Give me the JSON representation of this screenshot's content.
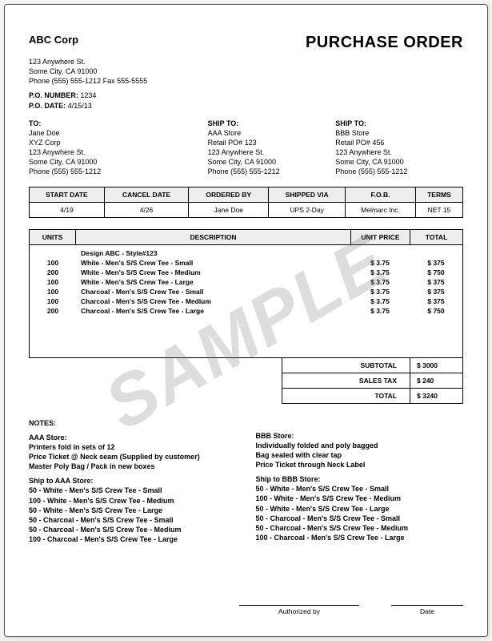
{
  "doc": {
    "title": "PURCHASE ORDER",
    "watermark": "SAMPLE"
  },
  "company": {
    "name": "ABC Corp",
    "addr1": "123 Anywhere St.",
    "addr2": "Some City, CA 91000",
    "phonefax": "Phone (555) 555-1212  Fax 555-5555"
  },
  "po": {
    "number_label": "P.O. NUMBER:",
    "number": "1234",
    "date_label": "P.O. DATE:",
    "date": "4/15/13"
  },
  "to": {
    "label": "TO:",
    "name": "Jane Doe",
    "company": "XYZ Corp",
    "addr1": "123 Anywhere St.",
    "addr2": "Some City, CA 91000",
    "phone": "Phone (555) 555-1212"
  },
  "ship1": {
    "label": "SHIP TO:",
    "name": "AAA Store",
    "po": "Retail PO# 123",
    "addr1": "123 Anywhere St.",
    "addr2": "Some City, CA 91000",
    "phone": "Phone (555) 555-1212"
  },
  "ship2": {
    "label": "SHIP TO:",
    "name": "BBB Store",
    "po": "Retail PO# 456",
    "addr1": "123 Anywhere St.",
    "addr2": "Some City, CA 91000",
    "phone": "Phone (555) 555-1212"
  },
  "grid": {
    "headers": {
      "start": "START DATE",
      "cancel": "CANCEL DATE",
      "ordered": "ORDERED BY",
      "shipped": "SHIPPED VIA",
      "fob": "F.O.B.",
      "terms": "TERMS"
    },
    "row": {
      "start": "4/19",
      "cancel": "4/26",
      "ordered": "Jane Doe",
      "shipped": "UPS 2-Day",
      "fob": "Melmarc Inc.",
      "terms": "NET 15"
    }
  },
  "items": {
    "headers": {
      "units": "UNITS",
      "desc": "DESCRIPTION",
      "price": "UNIT PRICE",
      "total": "TOTAL"
    },
    "design_line": "Design ABC - Style#123",
    "lines": [
      {
        "units": "100",
        "desc": "White - Men's S/S Crew Tee - Small",
        "price": "$ 3.75",
        "total": "$  375"
      },
      {
        "units": "200",
        "desc": "White - Men's S/S Crew Tee - Medium",
        "price": "$ 3.75",
        "total": "$  750"
      },
      {
        "units": "100",
        "desc": "White - Men's S/S Crew Tee - Large",
        "price": "$ 3.75",
        "total": "$  375"
      },
      {
        "units": "100",
        "desc": "Charcoal - Men's S/S Crew Tee - Small",
        "price": "$ 3.75",
        "total": "$  375"
      },
      {
        "units": "100",
        "desc": "Charcoal - Men's S/S Crew Tee - Medium",
        "price": "$ 3.75",
        "total": "$  375"
      },
      {
        "units": "200",
        "desc": "Charcoal - Men's S/S Crew Tee - Large",
        "price": "$ 3.75",
        "total": "$  750"
      }
    ]
  },
  "totals": {
    "subtotal_label": "SUBTOTAL",
    "subtotal": "$  3000",
    "tax_label": "SALES TAX",
    "tax": "$   240",
    "total_label": "TOTAL",
    "total": "$  3240"
  },
  "notes": {
    "heading": "NOTES:",
    "aaa": {
      "title": "AAA Store:",
      "l1": "Printers fold in sets of 12",
      "l2": "Price Ticket @ Neck seam (Supplied by customer)",
      "l3": "Master Poly Bag / Pack in new boxes",
      "ship_title": "Ship to AAA Store:",
      "s1": "50 - White - Men's S/S Crew Tee - Small",
      "s2": "100 - White - Men's S/S Crew Tee - Medium",
      "s3": "50 - White - Men's S/S Crew Tee - Large",
      "s4": "50 - Charcoal - Men's S/S Crew Tee - Small",
      "s5": "50 - Charcoal - Men's S/S Crew Tee - Medium",
      "s6": "100 - Charcoal - Men's S/S Crew Tee - Large"
    },
    "bbb": {
      "title": "BBB Store:",
      "l1": "Individually folded and poly bagged",
      "l2": "Bag sealed with clear tap",
      "l3": "Price Ticket through Neck Label",
      "ship_title": "Ship to BBB Store:",
      "s1": "50 - White - Men's S/S Crew Tee - Small",
      "s2": "100 - White - Men's S/S Crew Tee - Medium",
      "s3": "50 - White - Men's S/S Crew Tee - Large",
      "s4": "50 - Charcoal - Men's S/S Crew Tee -  Small",
      "s5": "50 - Charcoal - Men's S/S Crew Tee -  Medium",
      "s6": "100 - Charcoal - Men's S/S Crew Tee - Large"
    }
  },
  "sig": {
    "auth": "Authorized by",
    "date": "Date"
  },
  "style": {
    "colors": {
      "page_bg": "#ffffff",
      "border": "#000000",
      "header_fill": "#eeeeee",
      "watermark": "rgba(120,120,120,0.25)"
    },
    "fontsize": {
      "body": 9,
      "title": 20,
      "company": 13,
      "table": 8.5
    }
  }
}
